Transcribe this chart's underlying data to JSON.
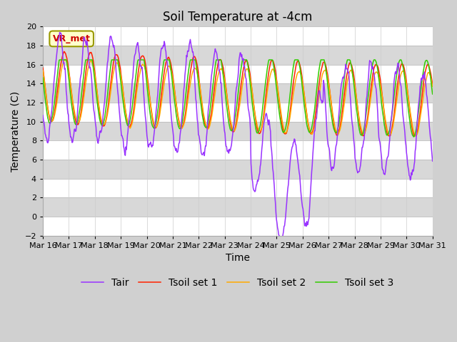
{
  "title": "Soil Temperature at -4cm",
  "xlabel": "Time",
  "ylabel": "Temperature (C)",
  "ylim": [
    -2,
    20
  ],
  "yticks": [
    -2,
    0,
    2,
    4,
    6,
    8,
    10,
    12,
    14,
    16,
    18,
    20
  ],
  "x_labels": [
    "Mar 16",
    "Mar 17",
    "Mar 18",
    "Mar 19",
    "Mar 20",
    "Mar 21",
    "Mar 22",
    "Mar 23",
    "Mar 24",
    "Mar 25",
    "Mar 26",
    "Mar 27",
    "Mar 28",
    "Mar 29",
    "Mar 30",
    "Mar 31"
  ],
  "colors": {
    "Tair": "#9933ff",
    "Tsoil1": "#ff2200",
    "Tsoil2": "#ffaa00",
    "Tsoil3": "#33cc00"
  },
  "legend_labels": [
    "Tair",
    "Tsoil set 1",
    "Tsoil set 2",
    "Tsoil set 3"
  ],
  "annotation_text": "VR_met",
  "annotation_fg": "#cc0000",
  "annotation_bg": "#ffffcc",
  "annotation_edge": "#999900",
  "fig_bg": "#d0d0d0",
  "stripe_light": "#ffffff",
  "stripe_dark": "#d8d8d8",
  "title_fontsize": 12,
  "axis_label_fontsize": 10,
  "tick_fontsize": 8,
  "legend_fontsize": 10,
  "line_width": 1.1,
  "n_days": 15,
  "points_per_day": 48
}
